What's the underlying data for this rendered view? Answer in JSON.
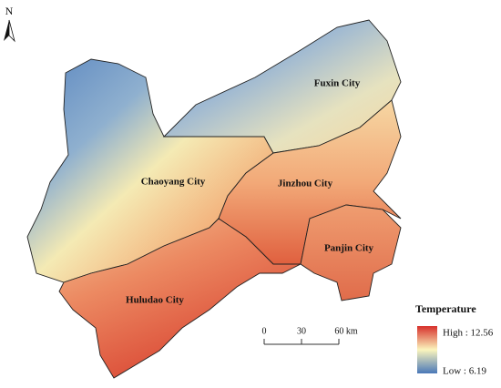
{
  "north_arrow": {
    "label": "N"
  },
  "regions": [
    {
      "label": "Fuxin City"
    },
    {
      "label": "Chaoyang City"
    },
    {
      "label": "Jinzhou City"
    },
    {
      "label": "Panjin City"
    },
    {
      "label": "Huludao City"
    }
  ],
  "legend": {
    "title": "Temperature",
    "high": "High : 12.56",
    "low": "Low : 6.19"
  },
  "scale_bar": {
    "ticks": [
      "0",
      "30",
      "60 km"
    ]
  }
}
